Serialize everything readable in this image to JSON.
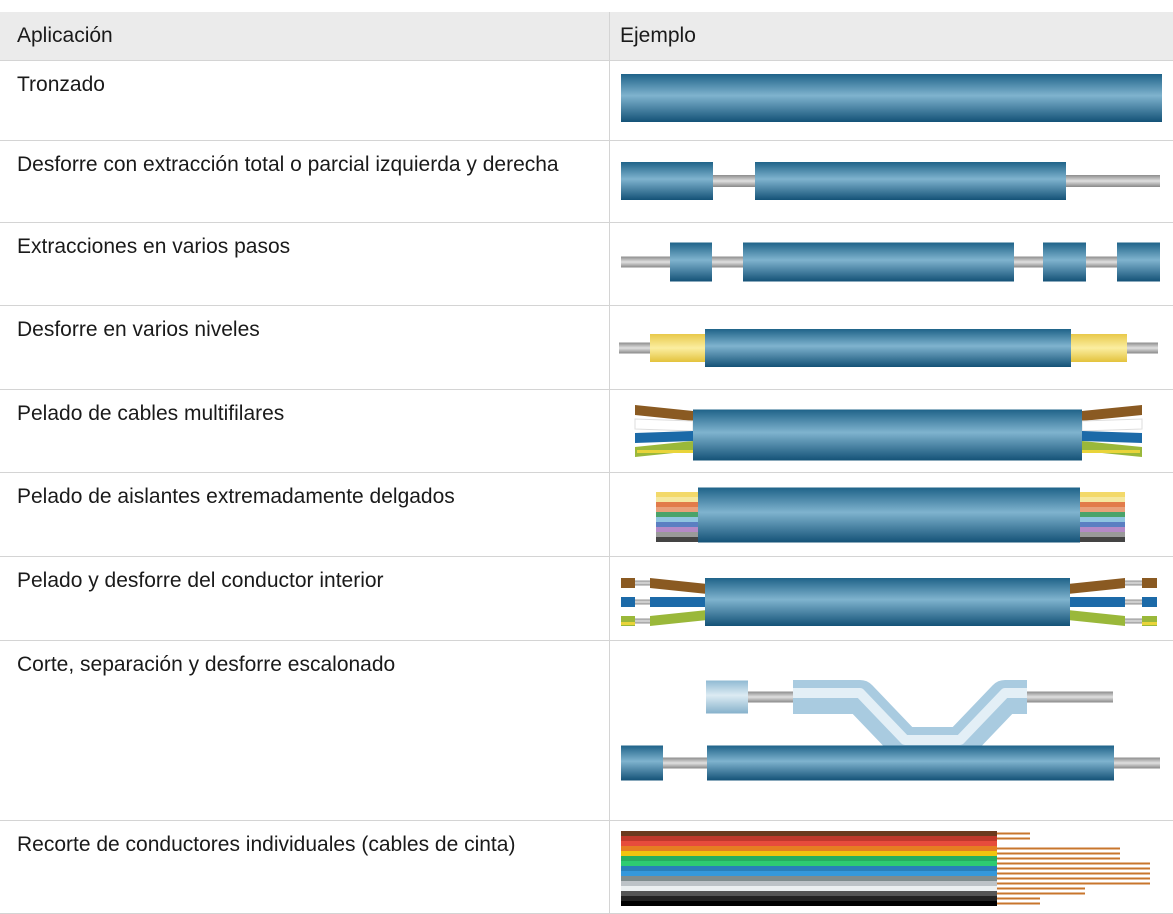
{
  "table": {
    "headers": [
      "Aplicación",
      "Ejemplo"
    ],
    "rows": [
      "Tronzado",
      "Desforre con extracción total o parcial izquierda y derecha",
      "Extracciones en varios pasos",
      "Desforre en varios niveles",
      "Pelado de cables multifilares",
      "Pelado de aislantes extremadamente delgados",
      "Pelado y desforre del conductor interior",
      "Corte, separación y desforre escalonado",
      "Recorte de conductores individuales (cables de cinta)"
    ]
  }
}
